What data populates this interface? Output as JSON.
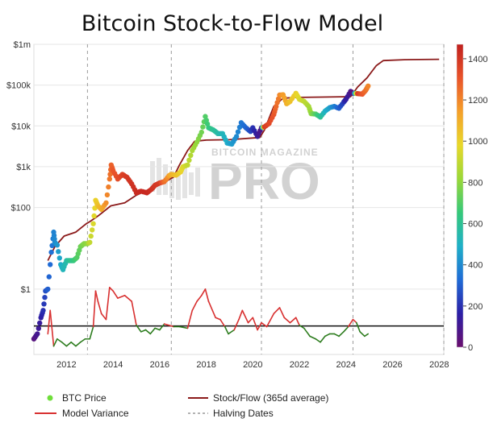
{
  "chart_data": {
    "type": "line",
    "title": "Bitcoin Stock-to-Flow Model",
    "watermark": {
      "top": "BITCOIN MAGAZINE",
      "main": "PRO"
    },
    "y_axis": {
      "scale": "log",
      "range": [
        0.025,
        1000000
      ],
      "ticks": [
        {
          "value": 1000000,
          "label": "$1m"
        },
        {
          "value": 100000,
          "label": "$100k"
        },
        {
          "value": 10000,
          "label": "$10k"
        },
        {
          "value": 1000,
          "label": "$1k"
        },
        {
          "value": 100,
          "label": "$100"
        },
        {
          "value": 1,
          "label": "$1"
        }
      ]
    },
    "x_axis": {
      "range": [
        2010.6,
        2028.2
      ],
      "ticks": [
        {
          "value": 2012,
          "label": "2012"
        },
        {
          "value": 2014,
          "label": "2014"
        },
        {
          "value": 2016,
          "label": "2016"
        },
        {
          "value": 2018,
          "label": "2018"
        },
        {
          "value": 2020,
          "label": "2020"
        },
        {
          "value": 2022,
          "label": "2022"
        },
        {
          "value": 2024,
          "label": "2024"
        },
        {
          "value": 2026,
          "label": "2026"
        },
        {
          "value": 2028,
          "label": "2028"
        }
      ]
    },
    "colorbar": {
      "label_ticks": [
        "1400",
        "1200",
        "1000",
        "800",
        "600",
        "400",
        "200",
        "0"
      ],
      "tick_values": [
        1400,
        1200,
        1000,
        800,
        600,
        400,
        200,
        0
      ],
      "max": 1470,
      "colors": [
        "#6a0f6e",
        "#2c1fa6",
        "#1f6bd6",
        "#1fb0c8",
        "#35c97a",
        "#9ad838",
        "#e8d82a",
        "#f5a02a",
        "#e9532a",
        "#c0201e"
      ]
    },
    "halving_dates": [
      2012.9,
      2016.5,
      2020.37,
      2024.3,
      2028.2
    ],
    "series": [
      {
        "name": "BTC Price",
        "color_by": "days until next halving",
        "points": [
          [
            2010.6,
            0.06,
            50
          ],
          [
            2010.75,
            0.08,
            100
          ],
          [
            2010.9,
            0.2,
            150
          ],
          [
            2011.0,
            0.3,
            200
          ],
          [
            2011.1,
            0.9,
            260
          ],
          [
            2011.2,
            1.0,
            300
          ],
          [
            2011.35,
            8,
            340
          ],
          [
            2011.45,
            25,
            380
          ],
          [
            2011.5,
            14,
            400
          ],
          [
            2011.6,
            12,
            430
          ],
          [
            2011.75,
            4,
            480
          ],
          [
            2011.85,
            3,
            520
          ],
          [
            2012.0,
            5,
            560
          ],
          [
            2012.15,
            5,
            600
          ],
          [
            2012.3,
            5,
            640
          ],
          [
            2012.45,
            6,
            700
          ],
          [
            2012.6,
            11,
            740
          ],
          [
            2012.75,
            13,
            780
          ],
          [
            2012.9,
            13,
            800
          ],
          [
            2013.0,
            14,
            900
          ],
          [
            2013.15,
            40,
            950
          ],
          [
            2013.25,
            150,
            1000
          ],
          [
            2013.35,
            110,
            1050
          ],
          [
            2013.5,
            90,
            1100
          ],
          [
            2013.7,
            130,
            1180
          ],
          [
            2013.85,
            500,
            1230
          ],
          [
            2013.92,
            1100,
            1270
          ],
          [
            2014.0,
            800,
            1300
          ],
          [
            2014.2,
            500,
            1330
          ],
          [
            2014.4,
            650,
            1360
          ],
          [
            2014.6,
            550,
            1390
          ],
          [
            2014.8,
            380,
            1410
          ],
          [
            2015.0,
            230,
            1430
          ],
          [
            2015.2,
            250,
            1440
          ],
          [
            2015.45,
            230,
            1440
          ],
          [
            2015.65,
            280,
            1420
          ],
          [
            2015.8,
            350,
            1400
          ],
          [
            2016.0,
            400,
            1380
          ],
          [
            2016.2,
            430,
            1250
          ],
          [
            2016.4,
            600,
            1150
          ],
          [
            2016.5,
            650,
            1100
          ],
          [
            2016.7,
            620,
            1050
          ],
          [
            2016.9,
            750,
            1000
          ],
          [
            2017.0,
            1000,
            960
          ],
          [
            2017.2,
            1100,
            900
          ],
          [
            2017.4,
            2500,
            850
          ],
          [
            2017.6,
            4000,
            800
          ],
          [
            2017.8,
            7000,
            750
          ],
          [
            2017.96,
            17000,
            700
          ],
          [
            2018.1,
            9000,
            650
          ],
          [
            2018.3,
            8000,
            600
          ],
          [
            2018.5,
            6500,
            560
          ],
          [
            2018.7,
            6500,
            520
          ],
          [
            2018.9,
            3800,
            480
          ],
          [
            2019.1,
            3600,
            440
          ],
          [
            2019.3,
            5500,
            400
          ],
          [
            2019.5,
            12000,
            360
          ],
          [
            2019.7,
            9000,
            320
          ],
          [
            2019.9,
            7300,
            260
          ],
          [
            2020.0,
            9000,
            200
          ],
          [
            2020.2,
            5500,
            120
          ],
          [
            2020.37,
            9000,
            60
          ],
          [
            2020.5,
            9500,
            1380
          ],
          [
            2020.7,
            11500,
            1340
          ],
          [
            2020.9,
            19000,
            1300
          ],
          [
            2021.0,
            30000,
            1260
          ],
          [
            2021.15,
            57000,
            1200
          ],
          [
            2021.3,
            58000,
            1150
          ],
          [
            2021.45,
            35000,
            1100
          ],
          [
            2021.6,
            40000,
            1050
          ],
          [
            2021.85,
            63000,
            1000
          ],
          [
            2022.0,
            45000,
            950
          ],
          [
            2022.2,
            40000,
            900
          ],
          [
            2022.4,
            30000,
            850
          ],
          [
            2022.5,
            20000,
            800
          ],
          [
            2022.7,
            19500,
            700
          ],
          [
            2022.9,
            16500,
            600
          ],
          [
            2023.1,
            23000,
            500
          ],
          [
            2023.3,
            28000,
            450
          ],
          [
            2023.5,
            30000,
            380
          ],
          [
            2023.7,
            27000,
            300
          ],
          [
            2023.9,
            38000,
            220
          ],
          [
            2024.0,
            45000,
            150
          ],
          [
            2024.2,
            70000,
            80
          ],
          [
            2024.3,
            63000,
            40
          ],
          [
            2024.5,
            62000,
            1380
          ],
          [
            2024.7,
            60000,
            1300
          ],
          [
            2024.85,
            75000,
            1250
          ],
          [
            2024.95,
            95000,
            1200
          ]
        ]
      },
      {
        "name": "Stock/Flow (365d average)",
        "color": "#8b1a1a",
        "points": [
          [
            2011.2,
            5
          ],
          [
            2011.5,
            11
          ],
          [
            2011.9,
            20
          ],
          [
            2012.4,
            25
          ],
          [
            2012.85,
            40
          ],
          [
            2013.0,
            45
          ],
          [
            2013.4,
            65
          ],
          [
            2013.9,
            110
          ],
          [
            2014.5,
            130
          ],
          [
            2015.0,
            200
          ],
          [
            2015.5,
            270
          ],
          [
            2016.0,
            370
          ],
          [
            2016.4,
            480
          ],
          [
            2016.6,
            560
          ],
          [
            2016.85,
            1100
          ],
          [
            2017.2,
            2500
          ],
          [
            2017.5,
            4200
          ],
          [
            2018.0,
            4500
          ],
          [
            2019.0,
            4600
          ],
          [
            2020.3,
            5200
          ],
          [
            2020.5,
            8000
          ],
          [
            2020.9,
            30000
          ],
          [
            2021.3,
            48000
          ],
          [
            2022.0,
            50000
          ],
          [
            2023.0,
            51000
          ],
          [
            2024.2,
            52000
          ],
          [
            2024.5,
            90000
          ],
          [
            2024.9,
            150000
          ],
          [
            2025.3,
            300000
          ],
          [
            2025.6,
            400000
          ],
          [
            2026.5,
            420000
          ],
          [
            2028.0,
            430000
          ]
        ]
      },
      {
        "name": "Model Variance",
        "color": "#d83030",
        "color_below": "#2e7d1f",
        "baseline": 0.125,
        "points": [
          [
            2011.2,
            0.08
          ],
          [
            2011.3,
            0.3
          ],
          [
            2011.45,
            0.04
          ],
          [
            2011.6,
            0.06
          ],
          [
            2011.8,
            0.05
          ],
          [
            2012.0,
            0.04
          ],
          [
            2012.2,
            0.05
          ],
          [
            2012.4,
            0.04
          ],
          [
            2012.6,
            0.05
          ],
          [
            2012.8,
            0.06
          ],
          [
            2013.0,
            0.06
          ],
          [
            2013.15,
            0.12
          ],
          [
            2013.25,
            0.9
          ],
          [
            2013.35,
            0.5
          ],
          [
            2013.5,
            0.25
          ],
          [
            2013.7,
            0.18
          ],
          [
            2013.85,
            1.1
          ],
          [
            2014.0,
            0.9
          ],
          [
            2014.2,
            0.6
          ],
          [
            2014.5,
            0.7
          ],
          [
            2014.8,
            0.5
          ],
          [
            2015.0,
            0.13
          ],
          [
            2015.2,
            0.09
          ],
          [
            2015.4,
            0.1
          ],
          [
            2015.6,
            0.08
          ],
          [
            2015.8,
            0.11
          ],
          [
            2016.0,
            0.1
          ],
          [
            2016.2,
            0.14
          ],
          [
            2016.4,
            0.13
          ],
          [
            2016.6,
            0.12
          ],
          [
            2016.85,
            0.12
          ],
          [
            2017.2,
            0.11
          ],
          [
            2017.4,
            0.3
          ],
          [
            2017.6,
            0.5
          ],
          [
            2017.8,
            0.7
          ],
          [
            2017.96,
            1.0
          ],
          [
            2018.1,
            0.5
          ],
          [
            2018.4,
            0.2
          ],
          [
            2018.6,
            0.18
          ],
          [
            2018.8,
            0.12
          ],
          [
            2018.95,
            0.08
          ],
          [
            2019.2,
            0.1
          ],
          [
            2019.4,
            0.18
          ],
          [
            2019.55,
            0.3
          ],
          [
            2019.8,
            0.15
          ],
          [
            2020.0,
            0.2
          ],
          [
            2020.2,
            0.1
          ],
          [
            2020.37,
            0.15
          ],
          [
            2020.6,
            0.12
          ],
          [
            2020.9,
            0.25
          ],
          [
            2021.15,
            0.35
          ],
          [
            2021.35,
            0.2
          ],
          [
            2021.6,
            0.15
          ],
          [
            2021.85,
            0.2
          ],
          [
            2022.0,
            0.13
          ],
          [
            2022.2,
            0.11
          ],
          [
            2022.45,
            0.07
          ],
          [
            2022.7,
            0.06
          ],
          [
            2022.9,
            0.05
          ],
          [
            2023.1,
            0.07
          ],
          [
            2023.3,
            0.08
          ],
          [
            2023.5,
            0.08
          ],
          [
            2023.7,
            0.07
          ],
          [
            2023.9,
            0.09
          ],
          [
            2024.1,
            0.12
          ],
          [
            2024.3,
            0.18
          ],
          [
            2024.45,
            0.15
          ],
          [
            2024.6,
            0.09
          ],
          [
            2024.8,
            0.07
          ],
          [
            2024.95,
            0.08
          ]
        ]
      },
      {
        "name": "Halving Dates",
        "style": "dashed",
        "color": "#9a9a9a"
      }
    ],
    "legend": {
      "placement": "bottom",
      "items": [
        {
          "label": "BTC Price",
          "marker": "dot",
          "color": "#6fde3a"
        },
        {
          "label": "Stock/Flow (365d average)",
          "marker": "line",
          "color": "#8b1a1a"
        },
        {
          "label": "Model Variance",
          "marker": "line",
          "color": "#d83030"
        },
        {
          "label": "Halving Dates",
          "marker": "dash",
          "color": "#9a9a9a"
        }
      ]
    }
  }
}
